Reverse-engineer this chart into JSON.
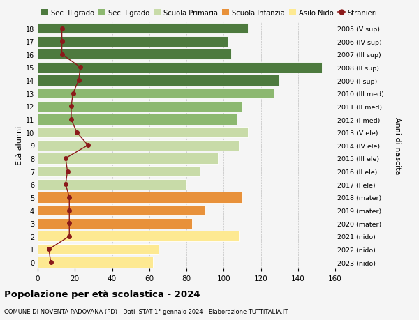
{
  "ages": [
    0,
    1,
    2,
    3,
    4,
    5,
    6,
    7,
    8,
    9,
    10,
    11,
    12,
    13,
    14,
    15,
    16,
    17,
    18
  ],
  "values": [
    62,
    65,
    108,
    83,
    90,
    110,
    80,
    87,
    97,
    108,
    113,
    107,
    110,
    127,
    130,
    153,
    104,
    102,
    113
  ],
  "stranieri": [
    7,
    6,
    17,
    17,
    17,
    17,
    15,
    16,
    15,
    27,
    21,
    18,
    18,
    19,
    22,
    23,
    13,
    13,
    13
  ],
  "right_labels": [
    "2023 (nido)",
    "2022 (nido)",
    "2021 (nido)",
    "2020 (mater)",
    "2019 (mater)",
    "2018 (mater)",
    "2017 (I ele)",
    "2016 (II ele)",
    "2015 (III ele)",
    "2014 (IV ele)",
    "2013 (V ele)",
    "2012 (I med)",
    "2011 (II med)",
    "2010 (III med)",
    "2009 (I sup)",
    "2008 (II sup)",
    "2007 (III sup)",
    "2006 (IV sup)",
    "2005 (V sup)"
  ],
  "bar_colors": [
    "#fde992",
    "#fde992",
    "#fde992",
    "#e8913a",
    "#e8913a",
    "#e8913a",
    "#c8dba8",
    "#c8dba8",
    "#c8dba8",
    "#c8dba8",
    "#c8dba8",
    "#8cb870",
    "#8cb870",
    "#8cb870",
    "#4d7a3e",
    "#4d7a3e",
    "#4d7a3e",
    "#4d7a3e",
    "#4d7a3e"
  ],
  "legend_labels": [
    "Sec. II grado",
    "Sec. I grado",
    "Scuola Primaria",
    "Scuola Infanzia",
    "Asilo Nido",
    "Stranieri"
  ],
  "legend_colors": [
    "#4d7a3e",
    "#8cb870",
    "#c8dba8",
    "#e8913a",
    "#fde992",
    "#8b1a1a"
  ],
  "title": "Popolazione per età scolastica - 2024",
  "subtitle": "COMUNE DI NOVENTA PADOVANA (PD) - Dati ISTAT 1° gennaio 2024 - Elaborazione TUTTITALIA.IT",
  "ylabel_left": "Età alunni",
  "ylabel_right": "Anni di nascita",
  "xlim": [
    0,
    160
  ],
  "xticks": [
    0,
    20,
    40,
    60,
    80,
    100,
    120,
    140,
    160
  ],
  "background_color": "#f5f5f5",
  "line_color": "#8b1a1a",
  "marker_color": "#8b1a1a"
}
